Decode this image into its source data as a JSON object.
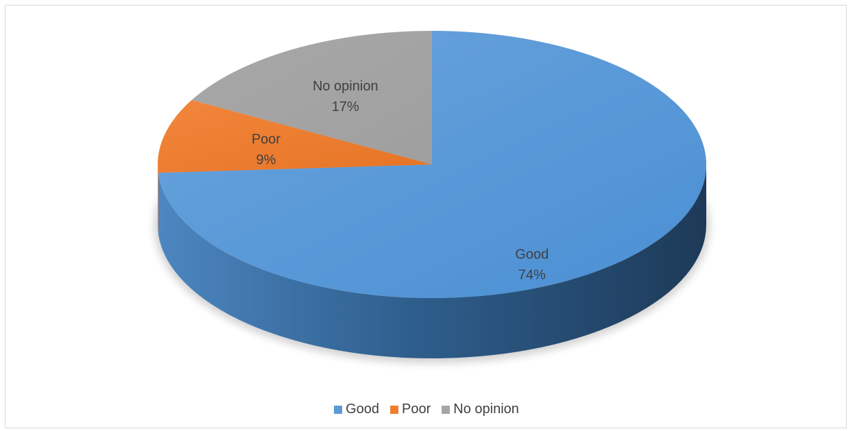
{
  "chart_data": {
    "type": "pie",
    "style": "3d",
    "categories": [
      "Good",
      "Poor",
      "No opinion"
    ],
    "values": [
      74,
      9,
      17
    ],
    "value_labels": [
      "74%",
      "9%",
      "17%"
    ],
    "colors": [
      "#5b9bd5",
      "#ed7d31",
      "#a5a5a5"
    ],
    "legend_position": "bottom",
    "start_angle": "top, clockwise"
  }
}
